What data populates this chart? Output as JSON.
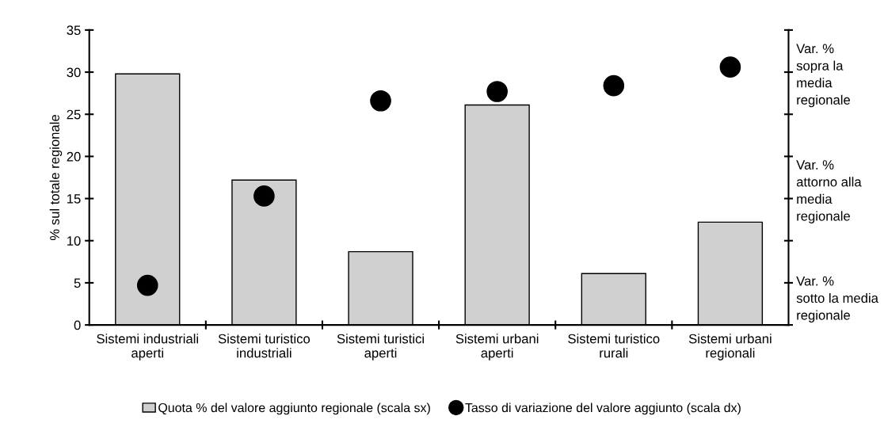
{
  "chart_data": {
    "type": "bar",
    "ylabel": "% sul totale regionale",
    "categories": [
      "Sistemi industriali\naperti",
      "Sistemi turistico\nindustriali",
      "Sistemi turistici\naperti",
      "Sistemi urbani\naperti",
      "Sistemi turistico\nrurali",
      "Sistemi urbani\nregionali"
    ],
    "series": [
      {
        "name": "Quota % del valore aggiunto regionale (scala sx)",
        "color": "#d0d0d0",
        "values": [
          29.8,
          17.2,
          8.7,
          26.1,
          6.1,
          12.2
        ]
      },
      {
        "name": "Tasso di variazione del valore aggiunto (scala dx)",
        "type": "scatter",
        "color": "#000000",
        "values": [
          4.7,
          15.3,
          26.6,
          27.7,
          28.4,
          30.6
        ]
      }
    ],
    "ylim": [
      0,
      35
    ],
    "yticks": [
      0,
      5,
      10,
      15,
      20,
      25,
      30,
      35
    ],
    "annotations": [
      "Var. %\nsopra la\nmedia\nregionale",
      "Var. %\nattorno alla\nmedia\nregionale",
      "Var. %\nsotto la media\nregionale"
    ],
    "marker": "circle",
    "grid": false,
    "legend": "bottom"
  }
}
